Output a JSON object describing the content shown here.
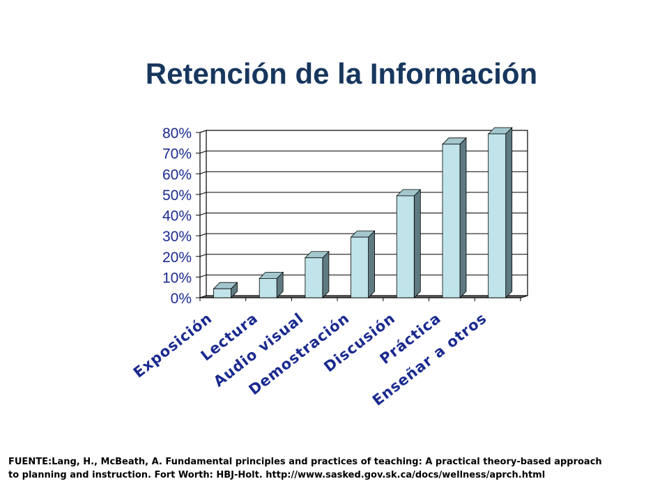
{
  "slide": {
    "title": "Retención de la Información",
    "source_line1": "FUENTE:Lang, H., McBeath, A. Fundamental principles and practices of teaching: A practical theory-based approach",
    "source_line2": "to planning and instruction. Fort Worth: HBJ-Holt. http://www.sasked.gov.sk.ca/docs/wellness/aprch.html"
  },
  "chart_data": {
    "type": "bar",
    "title": "Retención de la Información",
    "categories": [
      "Exposición",
      "Lectura",
      "Audio visual",
      "Demostración",
      "Discusión",
      "Práctica",
      "Enseñar a otros"
    ],
    "values": [
      5,
      10,
      20,
      30,
      50,
      75,
      80
    ],
    "y_ticks": [
      "0%",
      "10%",
      "20%",
      "30%",
      "40%",
      "50%",
      "60%",
      "70%",
      "80%"
    ],
    "ylim": [
      0,
      80
    ],
    "grid": true,
    "legend": "none",
    "style": "3d",
    "colors": {
      "bar_front": "#c0e4ea",
      "bar_side": "#5f7a80",
      "bar_top": "#a3c7cd",
      "text": "#1a2a8f",
      "title": "#17375e"
    }
  }
}
